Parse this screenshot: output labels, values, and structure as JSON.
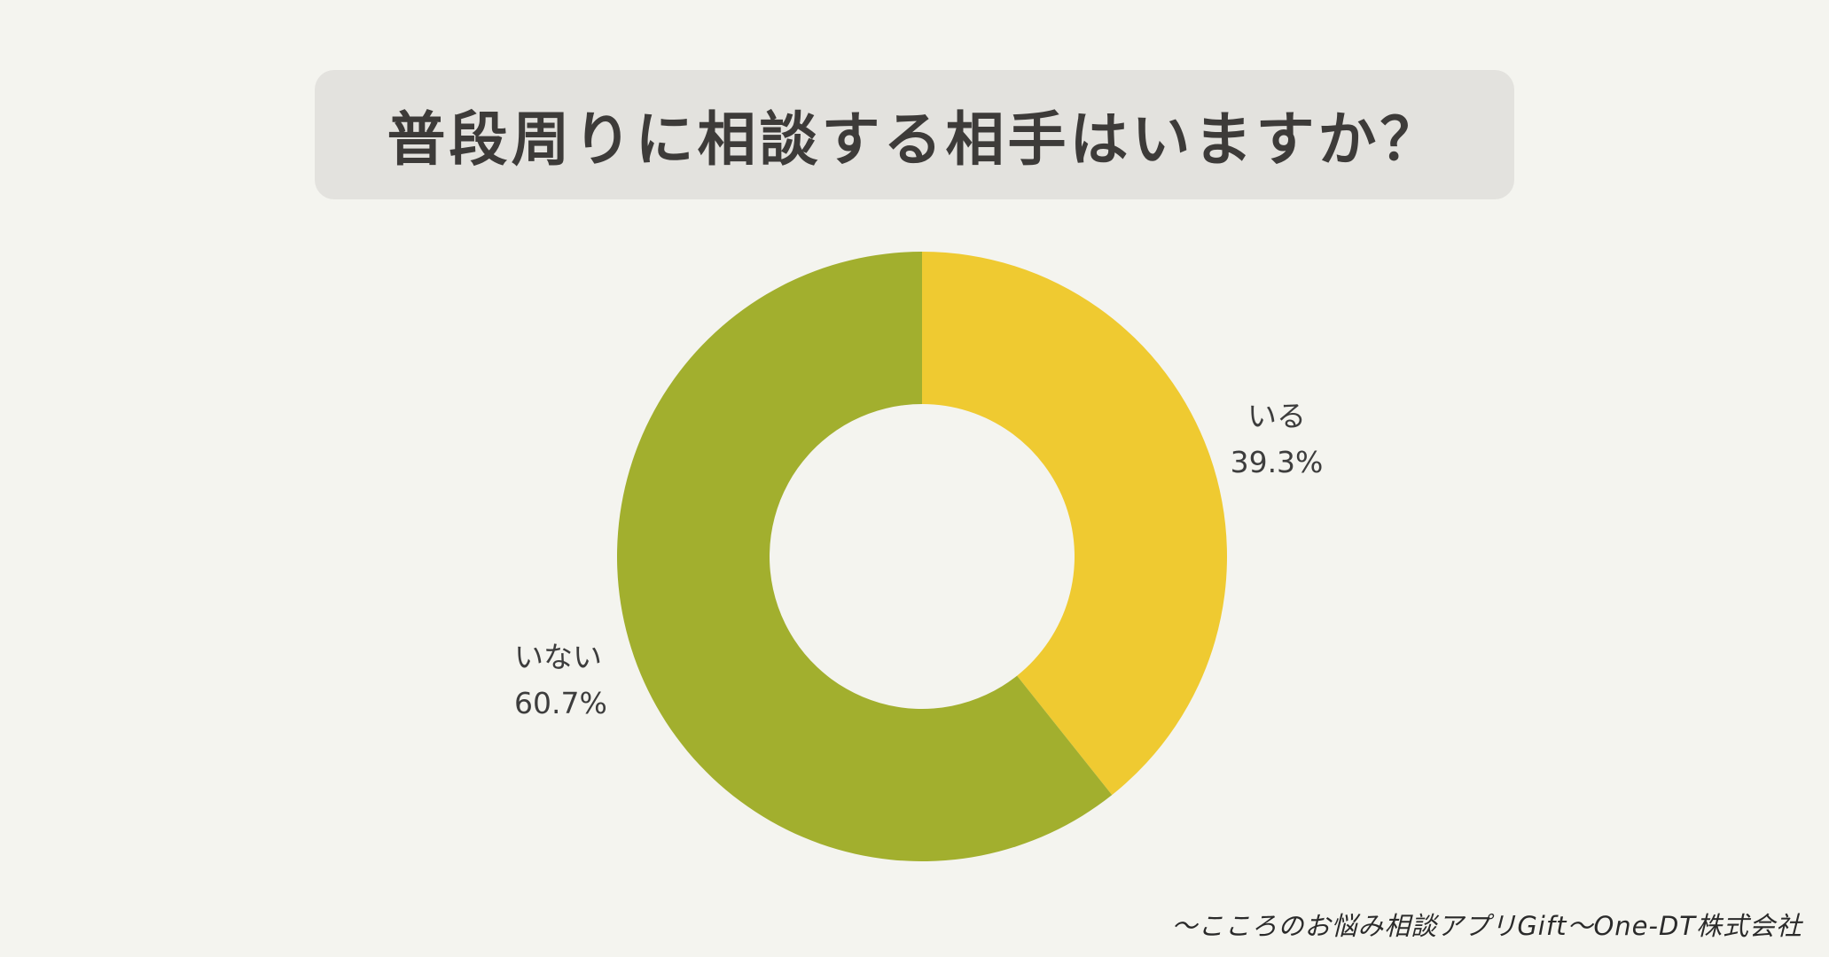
{
  "title": "普段周りに相談する相手はいますか？",
  "chart_data": {
    "type": "pie",
    "subtype": "donut",
    "title": "普段周りに相談する相手はいますか？",
    "categories": [
      "いる",
      "いない"
    ],
    "values": [
      39.3,
      60.7
    ],
    "unit": "%",
    "colors": [
      "#efca31",
      "#a2af2e"
    ],
    "start_angle": "12 o'clock, clockwise",
    "legend": "none (direct labels)"
  },
  "labels": [
    {
      "name": "いる",
      "value": "39.3%"
    },
    {
      "name": "いない",
      "value": "60.7%"
    }
  ],
  "footer": "～こころのお悩み相談アプリGift～One-DT株式会社",
  "colors": {
    "background": "#f4f4ef",
    "title_box": "#e3e2de",
    "text": "#3d3d3d",
    "slice_yes": "#efca31",
    "slice_no": "#a2af2e"
  }
}
